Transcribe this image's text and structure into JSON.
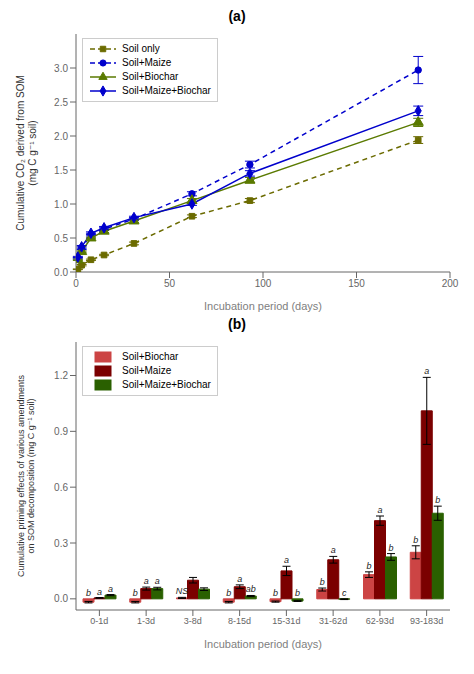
{
  "chart_data": [
    {
      "type": "line",
      "title": "(a)",
      "x_label": "Incubation period (days)",
      "y_label": "Cumulative CO₂ derived from SOM\n(mg C g⁻¹ soil)",
      "x": [
        1,
        3,
        8,
        15,
        31,
        62,
        93,
        183
      ],
      "xlim": [
        0,
        200
      ],
      "xticks": [
        0,
        50,
        100,
        150,
        200
      ],
      "ylim": [
        0,
        3.5
      ],
      "yticks": [
        {
          "value": 0,
          "label": "0.0"
        },
        0.5,
        {
          "value": 1.0,
          "label": "1.0"
        },
        1.5,
        {
          "value": 2.0,
          "label": "2.0"
        },
        2.5,
        {
          "value": 3.0,
          "label": "3.0"
        }
      ],
      "grid": false,
      "legend": "upper left",
      "series": [
        {
          "name": "Soil only",
          "color": "#6B6B00",
          "marker": "square",
          "line_style": "dashed",
          "values": [
            0.04,
            0.1,
            0.18,
            0.25,
            0.42,
            0.82,
            1.05,
            1.94
          ],
          "errors": [
            0.005,
            0.01,
            0.01,
            0.01,
            0.02,
            0.02,
            0.03,
            0.05
          ]
        },
        {
          "name": "Soil+Maize",
          "color": "#0000CC",
          "marker": "circle",
          "line_style": "dashed",
          "values": [
            0.2,
            0.35,
            0.55,
            0.63,
            0.78,
            1.15,
            1.58,
            2.97
          ],
          "errors": [
            0.01,
            0.02,
            0.02,
            0.02,
            0.02,
            0.03,
            0.05,
            0.2
          ]
        },
        {
          "name": "Soil+Biochar",
          "color": "#5A7A00",
          "marker": "triangle",
          "line_style": "solid",
          "values": [
            0.18,
            0.3,
            0.5,
            0.6,
            0.75,
            1.05,
            1.35,
            2.2
          ],
          "errors": [
            0.01,
            0.01,
            0.01,
            0.02,
            0.02,
            0.03,
            0.04,
            0.06
          ]
        },
        {
          "name": "Soil+Maize+Biochar",
          "color": "#0000CC",
          "marker": "diamond",
          "line_style": "solid",
          "values": [
            0.22,
            0.37,
            0.57,
            0.65,
            0.8,
            1.0,
            1.45,
            2.37
          ],
          "errors": [
            0.01,
            0.02,
            0.02,
            0.02,
            0.02,
            0.02,
            0.04,
            0.07
          ]
        }
      ]
    },
    {
      "type": "bar",
      "title": "(b)",
      "x_label": "Incubation period (days)",
      "y_label": "Cumulative priming effects of various amendments\non SOM decomposition (mg C g⁻¹ soil)",
      "categories": [
        "0-1d",
        "1-3d",
        "3-8d",
        "8-15d",
        "15-31d",
        "31-62d",
        "62-93d",
        "93-183d"
      ],
      "ylim": [
        -0.06,
        1.38
      ],
      "yticks": [
        {
          "value": 0.0,
          "label": "0.0"
        },
        0.3,
        0.6,
        0.9,
        1.2
      ],
      "grid": false,
      "legend": "upper left",
      "series": [
        {
          "name": "Soil+Biochar",
          "color": "#CC4444",
          "values": [
            -0.018,
            -0.018,
            0.005,
            -0.018,
            -0.015,
            0.05,
            0.13,
            0.25
          ],
          "errors": [
            0.004,
            0.004,
            0.003,
            0.004,
            0.003,
            0.008,
            0.015,
            0.035
          ],
          "annotations": [
            "b",
            "b",
            "NS",
            "b",
            "b",
            "b",
            "b",
            "b"
          ]
        },
        {
          "name": "Soil+Maize",
          "color": "#7B0000",
          "values": [
            0.005,
            0.055,
            0.1,
            0.065,
            0.15,
            0.21,
            0.42,
            1.01
          ],
          "errors": [
            0.002,
            0.008,
            0.015,
            0.01,
            0.025,
            0.018,
            0.025,
            0.18
          ],
          "annotations": [
            "a",
            "a",
            null,
            "a",
            "a",
            "a",
            "a",
            "a"
          ]
        },
        {
          "name": "Soil+Maize+Biochar",
          "color": "#2A6000",
          "values": [
            0.02,
            0.055,
            0.052,
            0.015,
            -0.012,
            -0.002,
            0.225,
            0.46
          ],
          "errors": [
            0.003,
            0.007,
            0.007,
            0.003,
            0.002,
            0.002,
            0.018,
            0.038
          ],
          "annotations": [
            "a",
            "a",
            null,
            "ab",
            "b",
            "c",
            "b",
            "b"
          ]
        }
      ]
    }
  ]
}
